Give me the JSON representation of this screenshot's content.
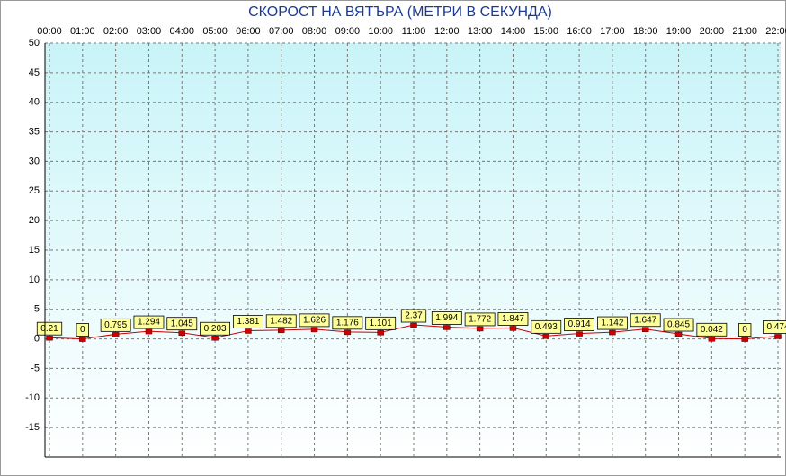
{
  "chart_data": {
    "type": "line",
    "title": "СКОРОСТ НА ВЯТЪРА (МЕТРИ В СЕКУНДА)",
    "categories": [
      "00:00",
      "01:00",
      "02:00",
      "03:00",
      "04:00",
      "05:00",
      "06:00",
      "07:00",
      "08:00",
      "09:00",
      "10:00",
      "11:00",
      "12:00",
      "13:00",
      "14:00",
      "15:00",
      "16:00",
      "17:00",
      "18:00",
      "19:00",
      "20:00",
      "21:00",
      "22:00"
    ],
    "values": [
      0.21,
      0,
      0.795,
      1.294,
      1.045,
      0.203,
      1.381,
      1.482,
      1.626,
      1.176,
      1.101,
      2.37,
      1.994,
      1.772,
      1.847,
      0.493,
      0.914,
      1.142,
      1.647,
      0.845,
      0.042,
      0,
      0.474
    ],
    "color": "#cc0000",
    "ylim": [
      -20,
      50
    ],
    "yticks": [
      50,
      45,
      40,
      35,
      30,
      25,
      20,
      15,
      10,
      5,
      0,
      -5,
      -10,
      -15
    ],
    "grid": true
  }
}
